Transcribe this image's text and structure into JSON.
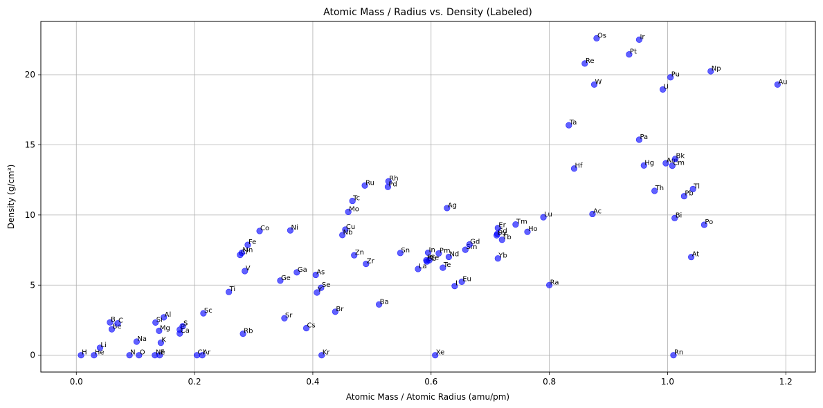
{
  "chart_data": {
    "type": "scatter",
    "title": "Atomic Mass / Radius vs. Density (Labeled)",
    "xlabel": "Atomic Mass / Atomic Radius (amu/pm)",
    "ylabel": "Density (g/cm³)",
    "xlim": [
      -0.06,
      1.25
    ],
    "ylim": [
      -1.2,
      23.8
    ],
    "xticks": [
      0.0,
      0.2,
      0.4,
      0.6,
      0.8,
      1.0,
      1.2
    ],
    "xtick_labels": [
      "0.0",
      "0.2",
      "0.4",
      "0.6",
      "0.8",
      "1.0",
      "1.2"
    ],
    "yticks": [
      0,
      5,
      10,
      15,
      20
    ],
    "ytick_labels": [
      "0",
      "5",
      "10",
      "15",
      "20"
    ],
    "grid": true,
    "marker_color": "#0000ff",
    "points": [
      {
        "label": "H",
        "x": 0.008,
        "y": 0.0
      },
      {
        "label": "He",
        "x": 0.03,
        "y": 0.0
      },
      {
        "label": "Li",
        "x": 0.04,
        "y": 0.53
      },
      {
        "label": "Be",
        "x": 0.06,
        "y": 1.85
      },
      {
        "label": "B",
        "x": 0.057,
        "y": 2.34
      },
      {
        "label": "C",
        "x": 0.07,
        "y": 2.27
      },
      {
        "label": "N",
        "x": 0.09,
        "y": 0.0
      },
      {
        "label": "O",
        "x": 0.106,
        "y": 0.0
      },
      {
        "label": "F",
        "x": 0.141,
        "y": 0.0
      },
      {
        "label": "Ne",
        "x": 0.133,
        "y": 0.0
      },
      {
        "label": "Na",
        "x": 0.102,
        "y": 0.97
      },
      {
        "label": "Mg",
        "x": 0.14,
        "y": 1.74
      },
      {
        "label": "Al",
        "x": 0.148,
        "y": 2.7
      },
      {
        "label": "Si",
        "x": 0.134,
        "y": 2.33
      },
      {
        "label": "P",
        "x": 0.175,
        "y": 1.82
      },
      {
        "label": "S",
        "x": 0.18,
        "y": 2.07
      },
      {
        "label": "Cl",
        "x": 0.204,
        "y": 0.0
      },
      {
        "label": "Ar",
        "x": 0.213,
        "y": 0.0
      },
      {
        "label": "K",
        "x": 0.143,
        "y": 0.89
      },
      {
        "label": "Ca",
        "x": 0.175,
        "y": 1.55
      },
      {
        "label": "Sc",
        "x": 0.215,
        "y": 2.99
      },
      {
        "label": "Ti",
        "x": 0.258,
        "y": 4.51
      },
      {
        "label": "V",
        "x": 0.285,
        "y": 6.0
      },
      {
        "label": "Cr",
        "x": 0.277,
        "y": 7.15
      },
      {
        "label": "Mn",
        "x": 0.28,
        "y": 7.3
      },
      {
        "label": "Fe",
        "x": 0.29,
        "y": 7.87
      },
      {
        "label": "Co",
        "x": 0.31,
        "y": 8.86
      },
      {
        "label": "Ni",
        "x": 0.362,
        "y": 8.9
      },
      {
        "label": "Cu",
        "x": 0.455,
        "y": 8.96
      },
      {
        "label": "Zn",
        "x": 0.47,
        "y": 7.13
      },
      {
        "label": "Ga",
        "x": 0.373,
        "y": 5.91
      },
      {
        "label": "Ge",
        "x": 0.345,
        "y": 5.32
      },
      {
        "label": "As",
        "x": 0.405,
        "y": 5.73
      },
      {
        "label": "Se",
        "x": 0.414,
        "y": 4.81
      },
      {
        "label": "Br",
        "x": 0.438,
        "y": 3.1
      },
      {
        "label": "Kr",
        "x": 0.415,
        "y": 0.0
      },
      {
        "label": "Rb",
        "x": 0.282,
        "y": 1.53
      },
      {
        "label": "Sr",
        "x": 0.352,
        "y": 2.64
      },
      {
        "label": "Y",
        "x": 0.407,
        "y": 4.47
      },
      {
        "label": "Zr",
        "x": 0.49,
        "y": 6.51
      },
      {
        "label": "Nb",
        "x": 0.45,
        "y": 8.57
      },
      {
        "label": "Mo",
        "x": 0.46,
        "y": 10.22
      },
      {
        "label": "Tc",
        "x": 0.467,
        "y": 11.0
      },
      {
        "label": "Ru",
        "x": 0.488,
        "y": 12.1
      },
      {
        "label": "Rh",
        "x": 0.528,
        "y": 12.4
      },
      {
        "label": "Pd",
        "x": 0.527,
        "y": 12.0
      },
      {
        "label": "Ag",
        "x": 0.627,
        "y": 10.49
      },
      {
        "label": "Cd",
        "x": 0.712,
        "y": 8.65
      },
      {
        "label": "In",
        "x": 0.595,
        "y": 7.31
      },
      {
        "label": "Sn",
        "x": 0.548,
        "y": 7.29
      },
      {
        "label": "Sb",
        "x": 0.593,
        "y": 6.68
      },
      {
        "label": "Te",
        "x": 0.62,
        "y": 6.24
      },
      {
        "label": "I",
        "x": 0.64,
        "y": 4.93
      },
      {
        "label": "Xe",
        "x": 0.607,
        "y": 0.0
      },
      {
        "label": "Cs",
        "x": 0.389,
        "y": 1.93
      },
      {
        "label": "Ba",
        "x": 0.512,
        "y": 3.62
      },
      {
        "label": "La",
        "x": 0.578,
        "y": 6.15
      },
      {
        "label": "Ce",
        "x": 0.597,
        "y": 6.77
      },
      {
        "label": "Pr",
        "x": 0.592,
        "y": 6.77
      },
      {
        "label": "Nd",
        "x": 0.63,
        "y": 7.01
      },
      {
        "label": "Pm",
        "x": 0.613,
        "y": 7.26
      },
      {
        "label": "Sm",
        "x": 0.658,
        "y": 7.52
      },
      {
        "label": "Eu",
        "x": 0.652,
        "y": 5.24
      },
      {
        "label": "Gd",
        "x": 0.665,
        "y": 7.9
      },
      {
        "label": "Tb",
        "x": 0.72,
        "y": 8.23
      },
      {
        "label": "Dy",
        "x": 0.711,
        "y": 8.55
      },
      {
        "label": "Ho",
        "x": 0.763,
        "y": 8.8
      },
      {
        "label": "Er",
        "x": 0.713,
        "y": 9.07
      },
      {
        "label": "Tm",
        "x": 0.743,
        "y": 9.32
      },
      {
        "label": "Yb",
        "x": 0.713,
        "y": 6.9
      },
      {
        "label": "Lu",
        "x": 0.79,
        "y": 9.84
      },
      {
        "label": "Hf",
        "x": 0.842,
        "y": 13.31
      },
      {
        "label": "Ta",
        "x": 0.833,
        "y": 16.4
      },
      {
        "label": "W",
        "x": 0.876,
        "y": 19.3
      },
      {
        "label": "Re",
        "x": 0.86,
        "y": 20.8
      },
      {
        "label": "Os",
        "x": 0.88,
        "y": 22.6
      },
      {
        "label": "Ir",
        "x": 0.952,
        "y": 22.5
      },
      {
        "label": "Pt",
        "x": 0.935,
        "y": 21.45
      },
      {
        "label": "Au",
        "x": 1.186,
        "y": 19.3
      },
      {
        "label": "Hg",
        "x": 0.96,
        "y": 13.53
      },
      {
        "label": "Tl",
        "x": 1.043,
        "y": 11.85
      },
      {
        "label": "Pb",
        "x": 1.028,
        "y": 11.34
      },
      {
        "label": "Bi",
        "x": 1.012,
        "y": 9.78
      },
      {
        "label": "Po",
        "x": 1.062,
        "y": 9.3
      },
      {
        "label": "At",
        "x": 1.04,
        "y": 7.0
      },
      {
        "label": "Rn",
        "x": 1.01,
        "y": 0.0
      },
      {
        "label": "Ra",
        "x": 0.8,
        "y": 5.0
      },
      {
        "label": "Ac",
        "x": 0.873,
        "y": 10.07
      },
      {
        "label": "Th",
        "x": 0.978,
        "y": 11.72
      },
      {
        "label": "Pa",
        "x": 0.952,
        "y": 15.37
      },
      {
        "label": "U",
        "x": 0.992,
        "y": 18.95
      },
      {
        "label": "Np",
        "x": 1.073,
        "y": 20.25
      },
      {
        "label": "Pu",
        "x": 1.005,
        "y": 19.82
      },
      {
        "label": "Am",
        "x": 0.997,
        "y": 13.69
      },
      {
        "label": "Cm",
        "x": 1.008,
        "y": 13.51
      },
      {
        "label": "Bk",
        "x": 1.013,
        "y": 14.0
      }
    ]
  }
}
